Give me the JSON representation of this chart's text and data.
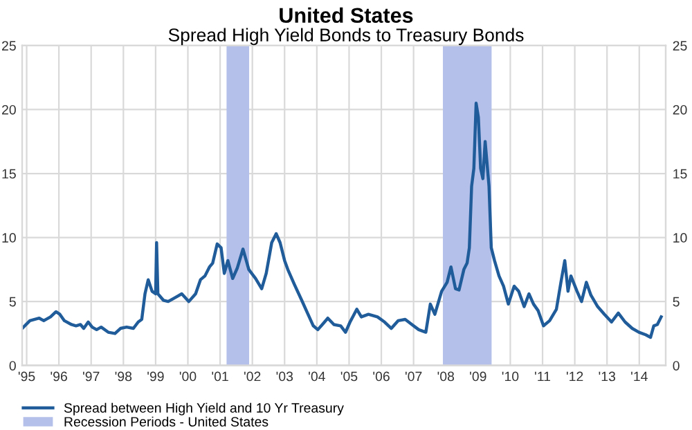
{
  "chart_data": {
    "type": "line",
    "title": "United States",
    "subtitle": "Spread High Yield Bonds to Treasury Bonds",
    "xlim": [
      1994.86,
      2014.82
    ],
    "ylim": [
      0,
      25
    ],
    "yticks": [
      0,
      5,
      10,
      15,
      20,
      25
    ],
    "y2lim": [
      0,
      25
    ],
    "y2ticks": [
      0,
      5,
      10,
      15,
      20,
      25
    ],
    "xticks": [
      {
        "value": 1995,
        "label": "'95"
      },
      {
        "value": 1996,
        "label": "'96"
      },
      {
        "value": 1997,
        "label": "'97"
      },
      {
        "value": 1998,
        "label": "'98"
      },
      {
        "value": 1999,
        "label": "'99"
      },
      {
        "value": 2000,
        "label": "'00"
      },
      {
        "value": 2001,
        "label": "'01"
      },
      {
        "value": 2002,
        "label": "'02"
      },
      {
        "value": 2003,
        "label": "'03"
      },
      {
        "value": 2004,
        "label": "'04"
      },
      {
        "value": 2005,
        "label": "'05"
      },
      {
        "value": 2006,
        "label": "'06"
      },
      {
        "value": 2007,
        "label": "'07"
      },
      {
        "value": 2008,
        "label": "'08"
      },
      {
        "value": 2009,
        "label": "'09"
      },
      {
        "value": 2010,
        "label": "'10"
      },
      {
        "value": 2011,
        "label": "'11"
      },
      {
        "value": 2012,
        "label": "'12"
      },
      {
        "value": 2013,
        "label": "'13"
      },
      {
        "value": 2014,
        "label": "'14"
      }
    ],
    "grid": true,
    "legend": "bottom left",
    "marker": "none",
    "line_style": "solid",
    "bands": [
      {
        "axis": "x",
        "from": 2001.2,
        "to": 2001.9,
        "label": "Recession Periods - United States",
        "color": "#b4c0ea"
      },
      {
        "axis": "x",
        "from": 2007.91,
        "to": 2009.42,
        "color": "#b4c0ea"
      }
    ],
    "series": [
      {
        "name": "Spread between High Yield and 10 Yr Treasury",
        "color": "#1f5c99",
        "x": [
          1994.86,
          1995.1,
          1995.39,
          1995.53,
          1995.74,
          1995.91,
          1996.03,
          1996.17,
          1996.39,
          1996.53,
          1996.67,
          1996.77,
          1996.91,
          1997.03,
          1997.17,
          1997.31,
          1997.53,
          1997.74,
          1997.91,
          1998.1,
          1998.31,
          1998.46,
          1998.57,
          1998.67,
          1998.77,
          1998.89,
          1999.0,
          1999.03,
          1999.07,
          1999.24,
          1999.39,
          1999.6,
          1999.81,
          2000.03,
          2000.24,
          2000.39,
          2000.53,
          2000.67,
          2000.77,
          2000.91,
          2001.03,
          2001.13,
          2001.24,
          2001.39,
          2001.53,
          2001.71,
          2001.89,
          2002.1,
          2002.29,
          2002.43,
          2002.6,
          2002.74,
          2002.86,
          2003.0,
          2003.1,
          2003.31,
          2003.53,
          2003.71,
          2003.89,
          2004.03,
          2004.17,
          2004.34,
          2004.53,
          2004.74,
          2004.89,
          2005.03,
          2005.24,
          2005.38,
          2005.6,
          2005.88,
          2006.1,
          2006.31,
          2006.52,
          2006.74,
          2006.95,
          2007.16,
          2007.38,
          2007.52,
          2007.66,
          2007.87,
          2008.04,
          2008.16,
          2008.3,
          2008.41,
          2008.56,
          2008.66,
          2008.73,
          2008.8,
          2008.87,
          2008.94,
          2009.01,
          2009.08,
          2009.15,
          2009.22,
          2009.34,
          2009.41,
          2009.51,
          2009.65,
          2009.79,
          2009.94,
          2010.12,
          2010.26,
          2010.43,
          2010.58,
          2010.72,
          2010.86,
          2011.03,
          2011.22,
          2011.43,
          2011.57,
          2011.69,
          2011.79,
          2011.88,
          2012.07,
          2012.21,
          2012.36,
          2012.5,
          2012.71,
          2012.92,
          2013.14,
          2013.35,
          2013.56,
          2013.78,
          2013.99,
          2014.2,
          2014.35,
          2014.45,
          2014.56,
          2014.68
        ],
        "values": [
          2.9,
          3.5,
          3.7,
          3.5,
          3.8,
          4.2,
          4.0,
          3.5,
          3.2,
          3.1,
          3.2,
          2.9,
          3.4,
          3.0,
          2.8,
          3.0,
          2.6,
          2.5,
          2.9,
          3.0,
          2.9,
          3.4,
          3.6,
          5.6,
          6.7,
          5.8,
          5.6,
          9.6,
          5.6,
          5.1,
          5.0,
          5.3,
          5.6,
          5.0,
          5.6,
          6.7,
          7.0,
          7.7,
          8.0,
          9.5,
          9.2,
          7.2,
          8.2,
          6.8,
          7.6,
          9.1,
          7.5,
          6.8,
          6.0,
          7.2,
          9.6,
          10.3,
          9.6,
          8.2,
          7.5,
          6.3,
          5.1,
          4.1,
          3.1,
          2.8,
          3.2,
          3.7,
          3.2,
          3.1,
          2.6,
          3.4,
          4.4,
          3.8,
          4.0,
          3.8,
          3.4,
          2.9,
          3.5,
          3.6,
          3.2,
          2.8,
          2.6,
          4.8,
          4.0,
          5.8,
          6.5,
          7.7,
          6.0,
          5.9,
          7.5,
          8.0,
          9.2,
          14.0,
          15.4,
          20.5,
          19.4,
          15.4,
          14.6,
          17.5,
          14.0,
          9.2,
          8.2,
          7.0,
          6.2,
          4.8,
          6.2,
          5.8,
          4.6,
          5.6,
          4.8,
          4.3,
          3.1,
          3.5,
          4.4,
          6.5,
          8.2,
          5.8,
          7.0,
          5.8,
          5.0,
          6.5,
          5.5,
          4.6,
          4.0,
          3.4,
          4.1,
          3.4,
          2.9,
          2.6,
          2.4,
          2.2,
          3.1,
          3.2,
          3.8
        ]
      }
    ]
  }
}
